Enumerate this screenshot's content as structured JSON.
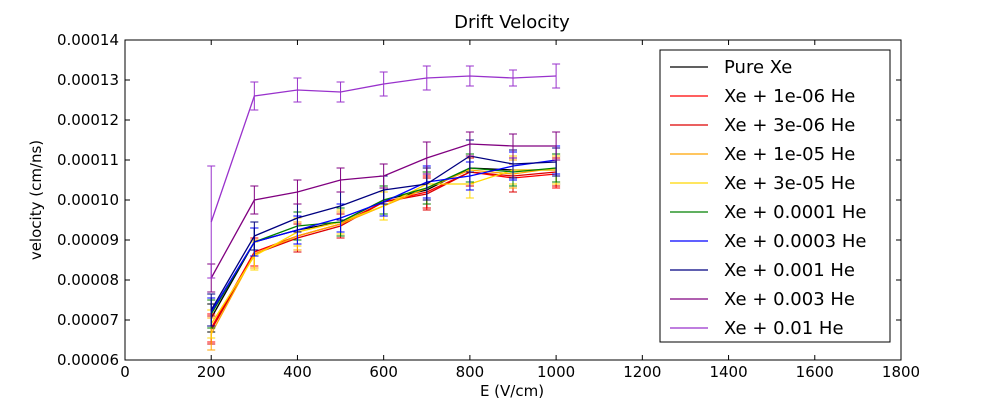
{
  "chart_data": {
    "type": "line",
    "title": "Drift Velocity",
    "xlabel": "E (V/cm)",
    "ylabel": "velocity (cm/ns)",
    "xlim": [
      0,
      1800
    ],
    "ylim": [
      6e-05,
      0.00014
    ],
    "xticks": [
      "0",
      "200",
      "400",
      "600",
      "800",
      "1000",
      "1200",
      "1400",
      "1600",
      "1800"
    ],
    "yticks": [
      "0.00006",
      "0.00007",
      "0.00008",
      "0.00009",
      "0.00010",
      "0.00011",
      "0.00012",
      "0.00013",
      "0.00014"
    ],
    "grid": false,
    "legend_position": "upper-right",
    "x": [
      200,
      300,
      400,
      500,
      600,
      700,
      800,
      900,
      1000
    ],
    "series": [
      {
        "name": "Pure Xe",
        "color": "#000000",
        "values": [
          7.05e-05,
          8.95e-05,
          9.25e-05,
          9.45e-05,
          0.0001,
          0.0001025,
          0.000108,
          0.0001075,
          0.0001075
        ],
        "errors": [
          3.5e-06,
          3.5e-06,
          3.5e-06,
          3.5e-06,
          3.5e-06,
          4.5e-06,
          3.5e-06,
          3.5e-06,
          3.5e-06
        ]
      },
      {
        "name": "Xe + 1e-06 He",
        "color": "#ff0000",
        "values": [
          6.8e-05,
          8.7e-05,
          9.1e-05,
          9.4e-05,
          9.95e-05,
          0.000102,
          0.000107,
          0.0001055,
          0.0001065
        ],
        "errors": [
          3.5e-06,
          3.5e-06,
          3.5e-06,
          3e-06,
          3.5e-06,
          4e-06,
          3.5e-06,
          3.5e-06,
          3.5e-06
        ]
      },
      {
        "name": "Xe + 3e-06 He",
        "color": "#dd0000",
        "values": [
          6.75e-05,
          8.65e-05,
          9.05e-05,
          9.35e-05,
          9.95e-05,
          0.0001015,
          0.000107,
          0.000106,
          0.000107
        ],
        "errors": [
          3.5e-06,
          3.5e-06,
          3.5e-06,
          3e-06,
          3.5e-06,
          4e-06,
          3.5e-06,
          4e-06,
          3.5e-06
        ]
      },
      {
        "name": "Xe + 1e-05 He",
        "color": "#ffa500",
        "values": [
          6.65e-05,
          8.65e-05,
          9.1e-05,
          9.4e-05,
          9.85e-05,
          0.000103,
          0.0001075,
          0.0001065,
          0.000108
        ],
        "errors": [
          4e-06,
          3.5e-06,
          3.5e-06,
          3e-06,
          3.5e-06,
          4e-06,
          3.5e-06,
          3.5e-06,
          3.5e-06
        ]
      },
      {
        "name": "Xe + 3e-05 He",
        "color": "#ffd700",
        "values": [
          6.9e-05,
          8.6e-05,
          9.2e-05,
          9.45e-05,
          9.85e-05,
          0.000104,
          0.000104,
          0.0001075,
          0.0001075
        ],
        "errors": [
          3.5e-06,
          3.5e-06,
          3.5e-06,
          3e-06,
          3.5e-06,
          4e-06,
          3.5e-06,
          3.5e-06,
          3.5e-06
        ]
      },
      {
        "name": "Xe + 0.0001 He",
        "color": "#008000",
        "values": [
          7.15e-05,
          8.95e-05,
          9.35e-05,
          9.45e-05,
          0.0001,
          0.000103,
          0.000108,
          0.000107,
          0.000108
        ],
        "errors": [
          3.5e-06,
          3.5e-06,
          3.5e-06,
          3.5e-06,
          3.5e-06,
          4e-06,
          3.5e-06,
          3.5e-06,
          3.5e-06
        ]
      },
      {
        "name": "Xe + 0.0003 He",
        "color": "#0000ff",
        "values": [
          7.2e-05,
          8.95e-05,
          9.25e-05,
          9.55e-05,
          9.95e-05,
          0.0001045,
          0.000106,
          0.0001085,
          0.00011
        ],
        "errors": [
          3.5e-06,
          3.5e-06,
          3.5e-06,
          3.5e-06,
          3.5e-06,
          4e-06,
          3.5e-06,
          3.5e-06,
          3.5e-06
        ]
      },
      {
        "name": "Xe + 0.001 He",
        "color": "#000080",
        "values": [
          7.25e-05,
          9.1e-05,
          9.55e-05,
          9.85e-05,
          0.0001025,
          0.000104,
          0.000111,
          0.000109,
          0.0001095
        ],
        "errors": [
          4e-06,
          3.5e-06,
          3.5e-06,
          3.5e-06,
          3.5e-06,
          4e-06,
          4e-06,
          3.5e-06,
          3.5e-06
        ]
      },
      {
        "name": "Xe + 0.003 He",
        "color": "#800080",
        "values": [
          8.05e-05,
          0.0001,
          0.000102,
          0.000105,
          0.000106,
          0.0001105,
          0.000114,
          0.0001135,
          0.0001135
        ],
        "errors": [
          3.5e-06,
          3.5e-06,
          3e-06,
          3e-06,
          3e-06,
          4e-06,
          3e-06,
          3e-06,
          3.5e-06
        ]
      },
      {
        "name": "Xe + 0.01 He",
        "color": "#9932cc",
        "values": [
          9.45e-05,
          0.000126,
          0.0001275,
          0.000127,
          0.000129,
          0.0001305,
          0.000131,
          0.0001305,
          0.000131
        ],
        "errors": [
          1.4e-05,
          3.5e-06,
          3e-06,
          2.5e-06,
          3e-06,
          3e-06,
          2.5e-06,
          2e-06,
          3e-06
        ]
      }
    ]
  }
}
